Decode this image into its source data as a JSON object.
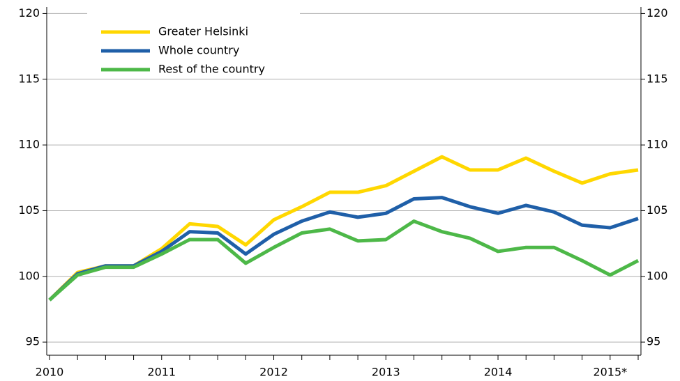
{
  "chart_data": {
    "type": "line",
    "categories": [
      "2010",
      null,
      null,
      null,
      "2011",
      null,
      null,
      null,
      "2012",
      null,
      null,
      null,
      "2013",
      null,
      null,
      null,
      "2014",
      null,
      null,
      null,
      "2015*",
      null
    ],
    "series": [
      {
        "name": "Greater Helsinki",
        "color": "#ffd700",
        "values": [
          98.2,
          100.3,
          100.8,
          100.8,
          102.1,
          104.0,
          103.8,
          102.4,
          104.3,
          105.3,
          106.4,
          106.4,
          106.9,
          108.0,
          109.1,
          108.1,
          108.1,
          109.0,
          108.0,
          107.1,
          107.8,
          108.1
        ]
      },
      {
        "name": "Whole country",
        "color": "#1f5fa8",
        "values": [
          98.2,
          100.2,
          100.8,
          100.8,
          101.9,
          103.4,
          103.3,
          101.7,
          103.2,
          104.2,
          104.9,
          104.5,
          104.8,
          105.9,
          106.0,
          105.3,
          104.8,
          105.4,
          104.9,
          103.9,
          103.7,
          104.4
        ]
      },
      {
        "name": "Rest of the country",
        "color": "#4db848",
        "values": [
          98.2,
          100.1,
          100.7,
          100.7,
          101.7,
          102.8,
          102.8,
          101.0,
          102.2,
          103.3,
          103.6,
          102.7,
          102.8,
          104.2,
          103.4,
          102.9,
          101.9,
          102.2,
          102.2,
          101.2,
          100.1,
          101.2
        ]
      }
    ],
    "ylim": [
      94,
      120.5
    ],
    "yticks": [
      95,
      100,
      105,
      110,
      115,
      120
    ],
    "grid": true,
    "legend": "upper-left"
  }
}
